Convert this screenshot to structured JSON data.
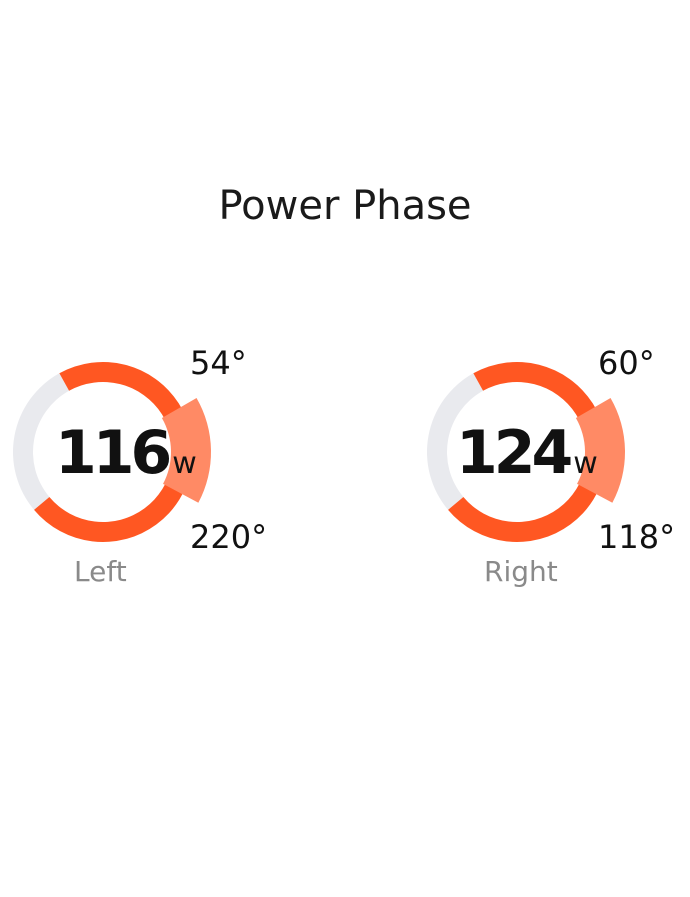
{
  "title": "Power Phase",
  "colors": {
    "phase": "#ff5722",
    "peak": "#ff8a65",
    "track": "#e9eaee"
  },
  "chart_data": {
    "type": "gauge",
    "title": "Power Phase",
    "series": [
      {
        "name": "Left",
        "power": "116",
        "unit": "w",
        "phase_start": "54°",
        "phase_end": "220°"
      },
      {
        "name": "Right",
        "power": "124",
        "unit": "w",
        "phase_start": "60°",
        "phase_end": "118°"
      }
    ]
  }
}
